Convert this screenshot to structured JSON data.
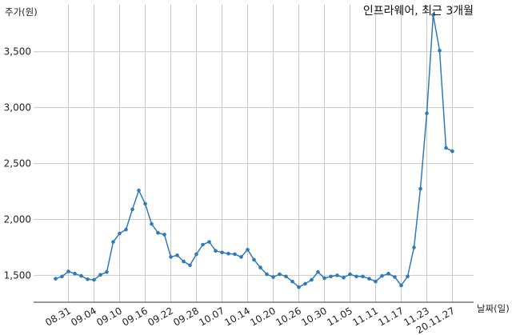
{
  "chart_data": {
    "type": "line",
    "title": "인프라웨어, 최근 3개월",
    "ylabel": "주가(원)",
    "xlabel": "날짜(일)",
    "ylim": [
      1260,
      3920
    ],
    "yticks": [
      1500,
      2000,
      2500,
      3000,
      3500
    ],
    "ytick_labels": [
      "1,500",
      "2,000",
      "2,500",
      "3,000",
      "3,500"
    ],
    "x_tick_labels": [
      "08.31",
      "09.04",
      "09.10",
      "09.16",
      "09.22",
      "09.28",
      "10.07",
      "10.14",
      "10.20",
      "10.26",
      "10.30",
      "11.05",
      "11.11",
      "11.17",
      "11.23",
      "20.11.27"
    ],
    "x_tick_indices": [
      2,
      6,
      10,
      14,
      18,
      22,
      26,
      30,
      34,
      38,
      42,
      46,
      50,
      54,
      58,
      62
    ],
    "grid": true,
    "legend": "none",
    "line_color": "#2f7ab8",
    "series": [
      {
        "values": [
          1470,
          1490,
          1535,
          1515,
          1495,
          1465,
          1460,
          1505,
          1530,
          1800,
          1875,
          1910,
          2090,
          2260,
          2140,
          1960,
          1880,
          1865,
          1665,
          1680,
          1625,
          1590,
          1690,
          1775,
          1800,
          1720,
          1705,
          1695,
          1690,
          1665,
          1730,
          1640,
          1570,
          1510,
          1485,
          1510,
          1490,
          1445,
          1395,
          1425,
          1460,
          1530,
          1475,
          1490,
          1500,
          1480,
          1510,
          1490,
          1490,
          1470,
          1445,
          1495,
          1515,
          1485,
          1410,
          1490,
          1750,
          2275,
          2950,
          3830,
          3510,
          2640,
          2610
        ]
      }
    ]
  }
}
